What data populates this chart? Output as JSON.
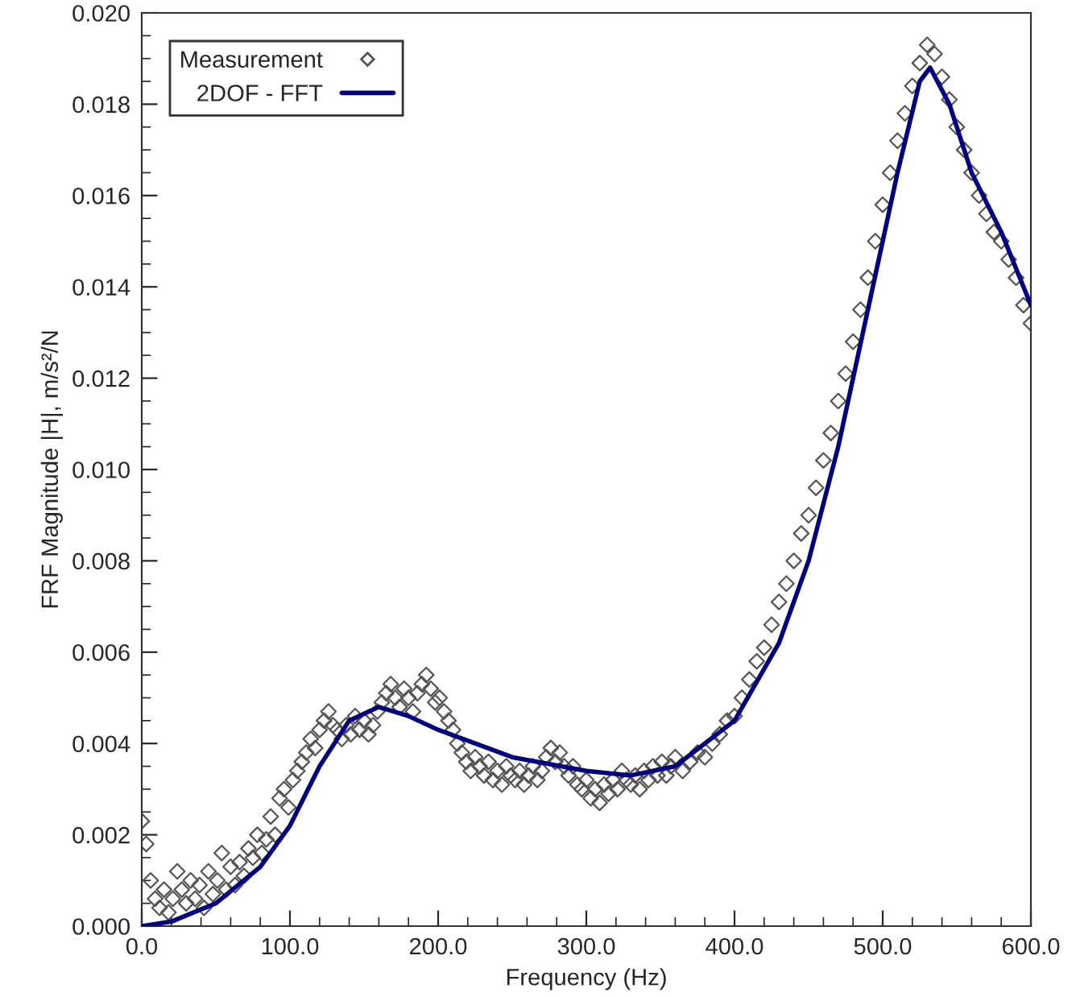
{
  "chart_data": {
    "type": "scatter",
    "xlabel": "Frequency (Hz)",
    "ylabel": "FRF Magnitude |H|, m/s²/N",
    "xlim": [
      0,
      600
    ],
    "ylim": [
      0,
      0.02
    ],
    "xticks": [
      {
        "value": 0,
        "label": "0.0"
      },
      {
        "value": 100,
        "label": "100.0"
      },
      {
        "value": 200,
        "label": "200.0"
      },
      {
        "value": 300,
        "label": "300.0"
      },
      {
        "value": 400,
        "label": "400.0"
      },
      {
        "value": 500,
        "label": "500.0"
      },
      {
        "value": 600,
        "label": "600.0"
      }
    ],
    "yticks": [
      {
        "value": 0,
        "label": "0.000"
      },
      {
        "value": 0.002,
        "label": "0.002"
      },
      {
        "value": 0.004,
        "label": "0.004"
      },
      {
        "value": 0.006,
        "label": "0.006"
      },
      {
        "value": 0.008,
        "label": "0.008"
      },
      {
        "value": 0.01,
        "label": "0.010"
      },
      {
        "value": 0.012,
        "label": "0.012"
      },
      {
        "value": 0.014,
        "label": "0.014"
      },
      {
        "value": 0.016,
        "label": "0.016"
      },
      {
        "value": 0.018,
        "label": "0.018"
      },
      {
        "value": 0.02,
        "label": "0.020"
      }
    ],
    "grid": false,
    "legend": "top left",
    "series": [
      {
        "name": "Measurement",
        "marker": "diamond",
        "color": "#555555",
        "x": [
          0,
          3,
          6,
          9,
          12,
          15,
          18,
          21,
          24,
          27,
          30,
          33,
          36,
          39,
          42,
          45,
          48,
          51,
          54,
          57,
          60,
          63,
          66,
          69,
          72,
          75,
          78,
          81,
          84,
          87,
          90,
          93,
          96,
          99,
          102,
          105,
          108,
          111,
          114,
          117,
          120,
          123,
          126,
          129,
          132,
          135,
          138,
          141,
          144,
          147,
          150,
          153,
          156,
          159,
          162,
          165,
          168,
          171,
          174,
          177,
          180,
          183,
          186,
          189,
          192,
          195,
          198,
          201,
          204,
          207,
          210,
          213,
          216,
          219,
          222,
          225,
          228,
          231,
          234,
          237,
          240,
          243,
          246,
          249,
          252,
          255,
          258,
          261,
          264,
          267,
          270,
          273,
          276,
          279,
          282,
          285,
          288,
          291,
          294,
          297,
          300,
          303,
          306,
          309,
          312,
          315,
          318,
          321,
          324,
          327,
          330,
          333,
          336,
          339,
          342,
          345,
          348,
          351,
          354,
          357,
          360,
          365,
          370,
          375,
          380,
          385,
          390,
          395,
          400,
          405,
          410,
          415,
          420,
          425,
          430,
          435,
          440,
          445,
          450,
          455,
          460,
          465,
          470,
          475,
          480,
          485,
          490,
          495,
          500,
          505,
          510,
          515,
          520,
          525,
          530,
          535,
          540,
          545,
          550,
          555,
          560,
          565,
          570,
          575,
          580,
          585,
          590,
          595,
          600
        ],
        "values": [
          0.0023,
          0.0018,
          0.001,
          0.0006,
          0.0004,
          0.0008,
          0.0003,
          0.0006,
          0.0012,
          0.0008,
          0.0005,
          0.001,
          0.0006,
          0.0009,
          0.0004,
          0.0012,
          0.0007,
          0.001,
          0.0016,
          0.0008,
          0.0013,
          0.0009,
          0.0014,
          0.0011,
          0.0017,
          0.0015,
          0.002,
          0.0016,
          0.0019,
          0.0024,
          0.002,
          0.0028,
          0.003,
          0.0026,
          0.0032,
          0.0034,
          0.0036,
          0.0038,
          0.0041,
          0.0039,
          0.0043,
          0.0045,
          0.0047,
          0.0044,
          0.0043,
          0.0041,
          0.0044,
          0.0042,
          0.0046,
          0.0043,
          0.0045,
          0.0042,
          0.0044,
          0.0047,
          0.0049,
          0.0051,
          0.0053,
          0.005,
          0.0048,
          0.0052,
          0.005,
          0.0047,
          0.0051,
          0.0053,
          0.0055,
          0.0052,
          0.0049,
          0.005,
          0.0047,
          0.0045,
          0.0043,
          0.004,
          0.0038,
          0.0036,
          0.0034,
          0.0037,
          0.0035,
          0.0033,
          0.0036,
          0.0032,
          0.0034,
          0.0031,
          0.0035,
          0.0033,
          0.0032,
          0.0034,
          0.0031,
          0.0033,
          0.0035,
          0.0032,
          0.0034,
          0.0037,
          0.0039,
          0.0036,
          0.0038,
          0.0035,
          0.0033,
          0.0035,
          0.0031,
          0.003,
          0.0032,
          0.0028,
          0.003,
          0.0027,
          0.0031,
          0.0029,
          0.0032,
          0.003,
          0.0034,
          0.0032,
          0.0031,
          0.0033,
          0.003,
          0.0034,
          0.0032,
          0.0035,
          0.0033,
          0.0036,
          0.0033,
          0.0035,
          0.0037,
          0.0034,
          0.0036,
          0.0038,
          0.0037,
          0.004,
          0.0042,
          0.0045,
          0.0046,
          0.005,
          0.0054,
          0.0058,
          0.0061,
          0.0066,
          0.0071,
          0.0075,
          0.008,
          0.0086,
          0.009,
          0.0096,
          0.0102,
          0.0108,
          0.0115,
          0.0121,
          0.0128,
          0.0135,
          0.0142,
          0.015,
          0.0158,
          0.0165,
          0.0172,
          0.0178,
          0.0184,
          0.0189,
          0.0193,
          0.0191,
          0.0186,
          0.0181,
          0.0175,
          0.017,
          0.0165,
          0.016,
          0.0156,
          0.0152,
          0.015,
          0.0146,
          0.0142,
          0.0136,
          0.0132
        ]
      },
      {
        "name": "2DOF - FFT",
        "type": "line",
        "marker": "none",
        "line_style": "solid",
        "color": "#000080",
        "x": [
          0,
          20,
          50,
          80,
          100,
          120,
          140,
          160,
          180,
          200,
          250,
          300,
          330,
          360,
          400,
          430,
          450,
          470,
          490,
          510,
          525,
          532,
          545,
          560,
          580,
          600
        ],
        "values": [
          0,
          0.0001,
          0.0005,
          0.0013,
          0.0022,
          0.0035,
          0.0045,
          0.0048,
          0.0046,
          0.0043,
          0.0037,
          0.0034,
          0.0033,
          0.0035,
          0.0045,
          0.0062,
          0.008,
          0.0105,
          0.0135,
          0.0165,
          0.0185,
          0.0188,
          0.018,
          0.0165,
          0.0152,
          0.0136
        ]
      }
    ]
  }
}
